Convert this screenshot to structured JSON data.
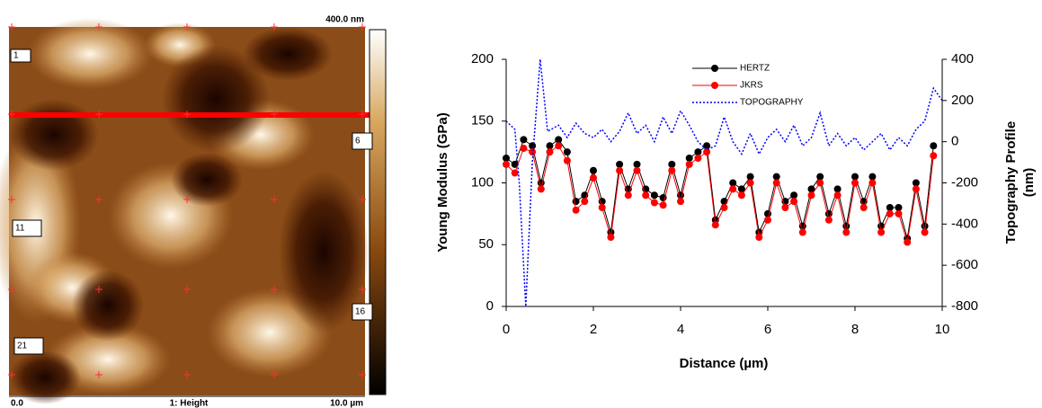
{
  "afm_image": {
    "scale_top": "400.0 nm",
    "markers": [
      "1",
      "6",
      "11",
      "16",
      "21"
    ],
    "x_start": "0.0",
    "caption": "1: Height",
    "x_end": "10.0 µm"
  },
  "chart_data": {
    "type": "line",
    "xlabel": "Distance (µm)",
    "ylabel": "Young Modulus (GPa)",
    "y2label": [
      "Topography Profile",
      "(nm)"
    ],
    "xlim": [
      0,
      10
    ],
    "xticks": [
      0,
      2,
      4,
      6,
      8,
      10
    ],
    "ylim": [
      0,
      200
    ],
    "yticks": [
      0,
      50,
      100,
      150,
      200
    ],
    "y2lim": [
      -800,
      400
    ],
    "y2ticks": [
      -800,
      -600,
      -400,
      -200,
      0,
      200,
      400
    ],
    "x": [
      0.0,
      0.2,
      0.4,
      0.6,
      0.8,
      1.0,
      1.2,
      1.4,
      1.6,
      1.8,
      2.0,
      2.2,
      2.4,
      2.6,
      2.8,
      3.0,
      3.2,
      3.4,
      3.6,
      3.8,
      4.0,
      4.2,
      4.4,
      4.6,
      4.8,
      5.0,
      5.2,
      5.4,
      5.6,
      5.8,
      6.0,
      6.2,
      6.4,
      6.6,
      6.8,
      7.0,
      7.2,
      7.4,
      7.6,
      7.8,
      8.0,
      8.2,
      8.4,
      8.6,
      8.8,
      9.0,
      9.2,
      9.4,
      9.6,
      9.8
    ],
    "series": [
      {
        "name": "HERTZ",
        "color": "#000000",
        "values": [
          120,
          115,
          135,
          130,
          100,
          130,
          135,
          125,
          85,
          90,
          110,
          85,
          60,
          115,
          95,
          115,
          95,
          90,
          88,
          115,
          90,
          120,
          125,
          130,
          70,
          85,
          100,
          95,
          105,
          60,
          75,
          105,
          85,
          90,
          65,
          95,
          105,
          75,
          95,
          65,
          105,
          85,
          105,
          65,
          80,
          80,
          55,
          100,
          65,
          130
        ]
      },
      {
        "name": "JKRS",
        "color": "#ff0000",
        "values": [
          115,
          108,
          128,
          125,
          95,
          125,
          130,
          118,
          78,
          85,
          104,
          80,
          56,
          110,
          90,
          110,
          90,
          84,
          82,
          110,
          85,
          115,
          120,
          125,
          66,
          80,
          95,
          90,
          100,
          56,
          70,
          100,
          80,
          85,
          60,
          90,
          100,
          70,
          90,
          60,
          100,
          80,
          100,
          60,
          75,
          75,
          52,
          95,
          60,
          122
        ]
      },
      {
        "name": "TOPOGRAPHY",
        "color": "#0000ff",
        "axis": "y2",
        "x": [
          0,
          0.2,
          0.3,
          0.45,
          0.6,
          0.78,
          0.95,
          1.2,
          1.4,
          1.6,
          1.8,
          2.0,
          2.2,
          2.4,
          2.6,
          2.8,
          3.0,
          3.2,
          3.4,
          3.6,
          3.8,
          4.0,
          4.2,
          4.4,
          4.6,
          4.8,
          5.0,
          5.2,
          5.4,
          5.6,
          5.8,
          6.0,
          6.2,
          6.4,
          6.6,
          6.8,
          7.0,
          7.2,
          7.4,
          7.6,
          7.8,
          8.0,
          8.2,
          8.4,
          8.6,
          8.8,
          9.0,
          9.2,
          9.4,
          9.6,
          9.8,
          10.0
        ],
        "values": [
          100,
          60,
          -200,
          -800,
          -100,
          400,
          50,
          80,
          20,
          90,
          40,
          20,
          60,
          0,
          50,
          140,
          40,
          80,
          0,
          120,
          40,
          150,
          80,
          0,
          -40,
          -20,
          120,
          0,
          -60,
          40,
          -60,
          20,
          60,
          0,
          80,
          -20,
          20,
          140,
          -20,
          40,
          -20,
          20,
          -40,
          0,
          40,
          -40,
          20,
          -20,
          60,
          100,
          260,
          200
        ]
      }
    ]
  }
}
